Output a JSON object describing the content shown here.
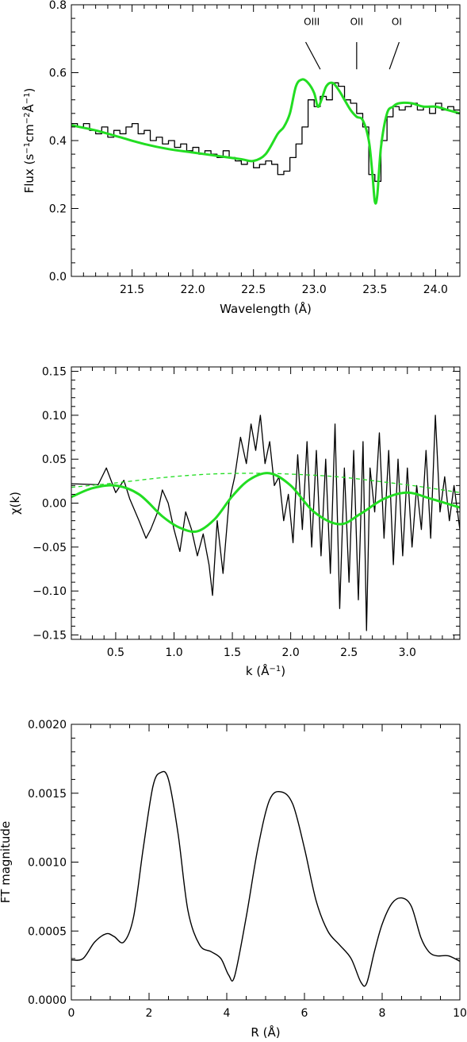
{
  "colors": {
    "data": "#000000",
    "model": "#22dd22"
  },
  "chart_data": [
    {
      "type": "line",
      "xlabel": "Wavelength (Å)",
      "ylabel_parts": [
        "Flux (s",
        "−1",
        "cm",
        "−2",
        "Å",
        "−1",
        ")"
      ],
      "xlim": [
        21.0,
        24.2
      ],
      "ylim": [
        0.0,
        0.8
      ],
      "xticks": [
        21.5,
        22.0,
        22.5,
        23.0,
        23.5,
        24.0
      ],
      "xtick_labels": [
        "21.5",
        "22.0",
        "22.5",
        "23.0",
        "23.5",
        "24.0"
      ],
      "yticks": [
        0.0,
        0.2,
        0.4,
        0.6,
        0.8
      ],
      "ytick_labels": [
        "0.0",
        "0.2",
        "0.4",
        "0.6",
        "0.8"
      ],
      "annotations": [
        {
          "text": "OIII",
          "x": 22.98,
          "line": [
            [
              22.93,
              0.69
            ],
            [
              23.05,
              0.61
            ]
          ]
        },
        {
          "text": "OII",
          "x": 23.35,
          "line": [
            [
              23.35,
              0.69
            ],
            [
              23.35,
              0.61
            ]
          ]
        },
        {
          "text": "OI",
          "x": 23.68,
          "line": [
            [
              23.7,
              0.69
            ],
            [
              23.62,
              0.61
            ]
          ]
        }
      ],
      "series": [
        {
          "style": "step",
          "x": [
            21.0,
            21.05,
            21.1,
            21.15,
            21.2,
            21.25,
            21.3,
            21.35,
            21.4,
            21.45,
            21.5,
            21.55,
            21.6,
            21.65,
            21.7,
            21.75,
            21.8,
            21.85,
            21.9,
            21.95,
            22.0,
            22.05,
            22.1,
            22.15,
            22.2,
            22.25,
            22.3,
            22.35,
            22.4,
            22.45,
            22.5,
            22.55,
            22.6,
            22.65,
            22.7,
            22.75,
            22.8,
            22.85,
            22.9,
            22.95,
            23.0,
            23.05,
            23.1,
            23.15,
            23.2,
            23.25,
            23.3,
            23.35,
            23.4,
            23.45,
            23.5,
            23.55,
            23.6,
            23.65,
            23.7,
            23.75,
            23.8,
            23.85,
            23.9,
            23.95,
            24.0,
            24.05,
            24.1,
            24.15,
            24.2
          ],
          "y": [
            0.45,
            0.44,
            0.45,
            0.43,
            0.42,
            0.44,
            0.41,
            0.43,
            0.42,
            0.44,
            0.45,
            0.42,
            0.43,
            0.4,
            0.41,
            0.39,
            0.4,
            0.38,
            0.39,
            0.37,
            0.38,
            0.36,
            0.37,
            0.36,
            0.35,
            0.37,
            0.35,
            0.34,
            0.33,
            0.34,
            0.32,
            0.33,
            0.34,
            0.33,
            0.3,
            0.31,
            0.35,
            0.39,
            0.44,
            0.52,
            0.5,
            0.53,
            0.52,
            0.57,
            0.56,
            0.52,
            0.51,
            0.48,
            0.44,
            0.3,
            0.28,
            0.4,
            0.47,
            0.5,
            0.49,
            0.5,
            0.51,
            0.49,
            0.5,
            0.48,
            0.51,
            0.49,
            0.5,
            0.49,
            0.49
          ]
        },
        {
          "style": "smooth",
          "x": [
            21.0,
            21.2,
            21.4,
            21.6,
            21.8,
            22.0,
            22.2,
            22.4,
            22.5,
            22.6,
            22.7,
            22.75,
            22.8,
            22.85,
            22.9,
            22.95,
            23.0,
            23.03,
            23.06,
            23.1,
            23.15,
            23.2,
            23.25,
            23.3,
            23.35,
            23.4,
            23.45,
            23.48,
            23.5,
            23.52,
            23.55,
            23.6,
            23.65,
            23.7,
            23.8,
            23.9,
            24.0,
            24.1,
            24.2
          ],
          "y": [
            0.445,
            0.43,
            0.41,
            0.39,
            0.375,
            0.365,
            0.355,
            0.345,
            0.34,
            0.36,
            0.42,
            0.44,
            0.48,
            0.56,
            0.58,
            0.57,
            0.54,
            0.5,
            0.52,
            0.56,
            0.57,
            0.55,
            0.52,
            0.49,
            0.47,
            0.46,
            0.4,
            0.3,
            0.22,
            0.24,
            0.38,
            0.48,
            0.5,
            0.51,
            0.51,
            0.5,
            0.5,
            0.49,
            0.48
          ]
        }
      ]
    },
    {
      "type": "line",
      "xlabel_parts": [
        "k (Å",
        "−1",
        ")"
      ],
      "ylabel": "χ(k)",
      "xlim": [
        0.12,
        3.45
      ],
      "ylim": [
        -0.155,
        0.155
      ],
      "xticks": [
        0.5,
        1.0,
        1.5,
        2.0,
        2.5,
        3.0
      ],
      "xtick_labels": [
        "0.5",
        "1.0",
        "1.5",
        "2.0",
        "2.5",
        "3.0"
      ],
      "yticks": [
        -0.15,
        -0.1,
        -0.05,
        0.0,
        0.05,
        0.1,
        0.15
      ],
      "ytick_labels": [
        "−0.15",
        "−0.10",
        "−0.05",
        "0.00",
        "0.05",
        "0.10",
        "0.15"
      ],
      "series": [
        {
          "style": "line",
          "x": [
            0.12,
            0.35,
            0.42,
            0.5,
            0.57,
            0.62,
            0.7,
            0.76,
            0.8,
            0.86,
            0.9,
            0.95,
            1.0,
            1.05,
            1.1,
            1.15,
            1.2,
            1.25,
            1.3,
            1.33,
            1.37,
            1.42,
            1.47,
            1.52,
            1.57,
            1.62,
            1.66,
            1.7,
            1.74,
            1.78,
            1.82,
            1.86,
            1.9,
            1.94,
            1.98,
            2.02,
            2.06,
            2.1,
            2.14,
            2.18,
            2.22,
            2.26,
            2.3,
            2.34,
            2.38,
            2.42,
            2.46,
            2.5,
            2.54,
            2.58,
            2.62,
            2.65,
            2.68,
            2.72,
            2.76,
            2.8,
            2.84,
            2.88,
            2.92,
            2.96,
            3.0,
            3.04,
            3.08,
            3.12,
            3.16,
            3.2,
            3.24,
            3.28,
            3.32,
            3.36,
            3.4,
            3.45
          ],
          "y": [
            0.022,
            0.021,
            0.04,
            0.012,
            0.026,
            0.005,
            -0.02,
            -0.04,
            -0.03,
            -0.01,
            0.015,
            0.0,
            -0.03,
            -0.055,
            -0.01,
            -0.03,
            -0.06,
            -0.035,
            -0.07,
            -0.105,
            -0.02,
            -0.08,
            0.0,
            0.03,
            0.075,
            0.045,
            0.09,
            0.06,
            0.1,
            0.045,
            0.07,
            0.02,
            0.03,
            -0.02,
            0.01,
            -0.045,
            0.055,
            -0.03,
            0.07,
            -0.05,
            0.06,
            -0.06,
            0.05,
            -0.08,
            0.09,
            -0.12,
            0.04,
            -0.09,
            0.06,
            -0.11,
            0.07,
            -0.145,
            0.04,
            -0.01,
            0.08,
            -0.04,
            0.06,
            -0.07,
            0.05,
            -0.06,
            0.04,
            -0.05,
            0.02,
            -0.03,
            0.06,
            -0.04,
            0.1,
            -0.01,
            0.03,
            -0.02,
            0.02,
            -0.03
          ]
        },
        {
          "style": "smooth",
          "x": [
            0.12,
            0.3,
            0.5,
            0.7,
            0.9,
            1.05,
            1.2,
            1.35,
            1.5,
            1.65,
            1.82,
            2.0,
            2.2,
            2.42,
            2.6,
            2.8,
            3.0,
            3.2,
            3.45
          ],
          "y": [
            0.007,
            0.017,
            0.02,
            0.01,
            -0.015,
            -0.028,
            -0.032,
            -0.018,
            0.008,
            0.027,
            0.034,
            0.02,
            -0.01,
            -0.024,
            -0.012,
            0.005,
            0.012,
            0.005,
            -0.005
          ]
        },
        {
          "style": "dashed",
          "x": [
            0.12,
            0.5,
            0.9,
            1.3,
            1.7,
            2.0,
            2.4,
            2.8,
            3.1,
            3.45
          ],
          "y": [
            0.018,
            0.023,
            0.029,
            0.033,
            0.034,
            0.033,
            0.03,
            0.024,
            0.019,
            0.012
          ]
        }
      ]
    },
    {
      "type": "line",
      "xlabel": "R (Å)",
      "ylabel": "FT magnitude",
      "xlim": [
        0,
        10
      ],
      "ylim": [
        0.0,
        0.002
      ],
      "xticks": [
        0,
        2,
        4,
        6,
        8,
        10
      ],
      "xtick_labels": [
        "0",
        "2",
        "4",
        "6",
        "8",
        "10"
      ],
      "yticks": [
        0.0,
        0.0005,
        0.001,
        0.0015,
        0.002
      ],
      "ytick_labels": [
        "0.0000",
        "0.0005",
        "0.0010",
        "0.0015",
        "0.0020"
      ],
      "series": [
        {
          "style": "smooth",
          "x": [
            0,
            0.3,
            0.6,
            0.9,
            1.1,
            1.35,
            1.6,
            1.85,
            2.1,
            2.3,
            2.5,
            2.75,
            3.0,
            3.3,
            3.6,
            3.85,
            4.05,
            4.2,
            4.5,
            4.8,
            5.1,
            5.4,
            5.7,
            6.0,
            6.3,
            6.6,
            6.9,
            7.2,
            7.45,
            7.6,
            7.8,
            8.0,
            8.25,
            8.5,
            8.75,
            9.0,
            9.2,
            9.4,
            9.7,
            10.0
          ],
          "y": [
            0.00029,
            0.0003,
            0.00042,
            0.00048,
            0.00046,
            0.00042,
            0.0006,
            0.0011,
            0.00155,
            0.00165,
            0.0016,
            0.0012,
            0.00065,
            0.0004,
            0.00035,
            0.0003,
            0.00018,
            0.00017,
            0.0006,
            0.0011,
            0.00145,
            0.00151,
            0.00142,
            0.0011,
            0.00072,
            0.0005,
            0.0004,
            0.0003,
            0.00013,
            0.00012,
            0.00035,
            0.00055,
            0.0007,
            0.00074,
            0.00068,
            0.00045,
            0.00035,
            0.00032,
            0.00032,
            0.00028
          ]
        }
      ]
    }
  ]
}
